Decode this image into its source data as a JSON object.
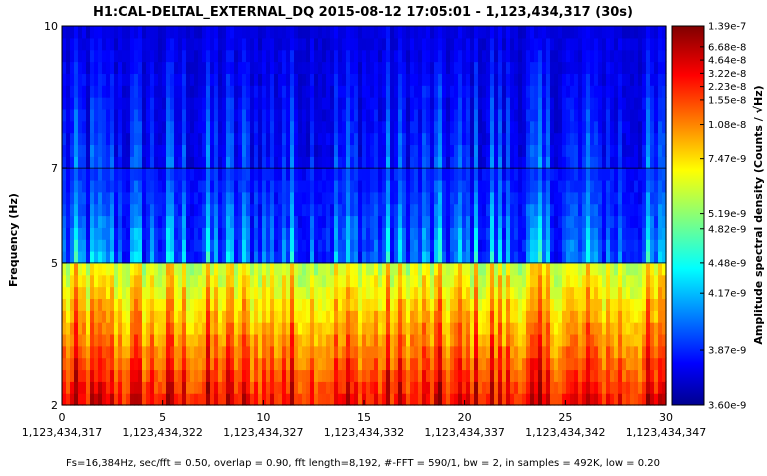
{
  "chart_data": {
    "type": "heatmap",
    "title": "H1:CAL-DELTAL_EXTERNAL_DQ 2015-08-12 17:05:01 - 1,123,434,317 (30s)",
    "xlabel": "",
    "ylabel": "Frequency (Hz)",
    "xlim": [
      0,
      30
    ],
    "ylim": [
      2,
      10
    ],
    "x_ticks": [
      {
        "value": 0,
        "label": "0",
        "gps": "1,123,434,317"
      },
      {
        "value": 5,
        "label": "5",
        "gps": "1,123,434,322"
      },
      {
        "value": 10,
        "label": "10",
        "gps": "1,123,434,327"
      },
      {
        "value": 15,
        "label": "15",
        "gps": "1,123,434,332"
      },
      {
        "value": 20,
        "label": "20",
        "gps": "1,123,434,337"
      },
      {
        "value": 25,
        "label": "25",
        "gps": "1,123,434,342"
      },
      {
        "value": 30,
        "label": "30",
        "gps": "1,123,434,347"
      }
    ],
    "y_ticks": [
      {
        "value": 2,
        "label": "2"
      },
      {
        "value": 5,
        "label": "5"
      },
      {
        "value": 7,
        "label": "7"
      },
      {
        "value": 10,
        "label": "10"
      }
    ],
    "y_gridlines": [
      5,
      7
    ],
    "footer": "Fs=16,384Hz, sec/fft = 0.50, overlap = 0.90, fft length=8,192, #-FFT = 590/1, bw = 2, in samples = 492K, low = 0.20",
    "colorbar": {
      "label": "Amplitude spectral density (Counts / √Hz)",
      "colormap": "jet",
      "ticks": [
        "1.39e-7",
        "6.68e-8",
        "4.64e-8",
        "3.22e-8",
        "2.23e-8",
        "1.55e-8",
        "1.08e-8",
        "7.47e-9",
        "5.19e-9",
        "4.82e-9",
        "4.48e-9",
        "4.17e-9",
        "3.87e-9",
        "3.60e-9"
      ],
      "tick_levels": [
        1.0,
        0.945,
        0.91,
        0.875,
        0.84,
        0.805,
        0.74,
        0.65,
        0.505,
        0.465,
        0.375,
        0.295,
        0.145,
        0.0
      ]
    }
  }
}
